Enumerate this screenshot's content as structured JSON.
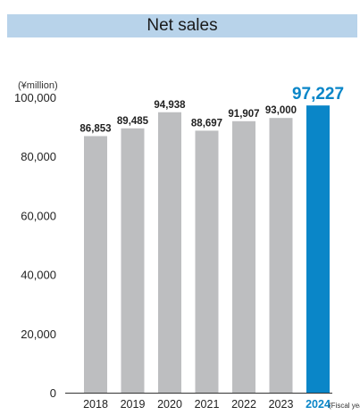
{
  "header": {
    "title": "Net sales"
  },
  "chart_data": {
    "type": "bar",
    "title": "Net sales",
    "unit_label": "(¥million)",
    "xunit_label": "(Fiscal year)",
    "categories": [
      "2018",
      "2019",
      "2020",
      "2021",
      "2022",
      "2023",
      "2024"
    ],
    "values": [
      86853,
      89485,
      94938,
      88697,
      91907,
      93000,
      97227
    ],
    "value_labels": [
      "86,853",
      "89,485",
      "94,938",
      "88,697",
      "91,907",
      "93,000",
      "97,227"
    ],
    "highlight_index": 6,
    "yticks": [
      0,
      20000,
      40000,
      60000,
      80000,
      100000
    ],
    "ytick_labels": [
      "0",
      "20,000",
      "40,000",
      "60,000",
      "80,000",
      "100,000"
    ],
    "ylim": [
      0,
      100000
    ],
    "colors": {
      "bar": "#bdbec0",
      "highlight": "#0a86c8",
      "title_band": "#b8d3ea",
      "axis": "#333333"
    }
  }
}
